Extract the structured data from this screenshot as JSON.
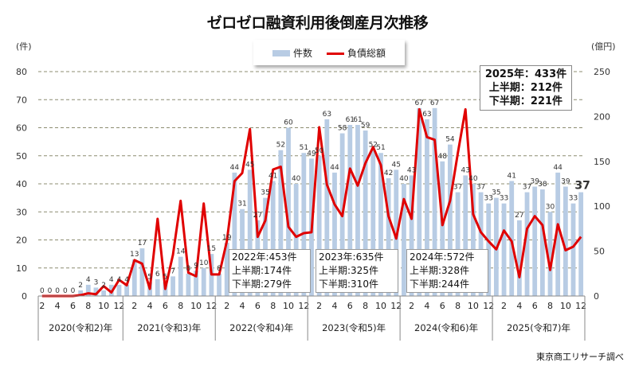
{
  "chart_data": {
    "type": "bar+line",
    "title": "ゼロゼロ融資利用後倒産月次推移",
    "left_axis_unit": "(件)",
    "right_axis_unit": "(億円)",
    "left_ylim": [
      0,
      80
    ],
    "left_ticks": [
      "0",
      "10",
      "20",
      "30",
      "40",
      "50",
      "60",
      "70",
      "80"
    ],
    "right_ylim": [
      0,
      250
    ],
    "right_ticks": [
      "0",
      "50",
      "100",
      "150",
      "200",
      "250"
    ],
    "grid": true,
    "legend_position": "top-center",
    "legend": {
      "bar": "件数",
      "line": "負債総額"
    },
    "colors": {
      "bar": "#b8cce4",
      "line": "#e00000",
      "grid": "#8c8c70"
    },
    "years": [
      {
        "label": "2020(令和2)年",
        "months": [
          2,
          3,
          4,
          5,
          6,
          7,
          8,
          9,
          10,
          11,
          12
        ]
      },
      {
        "label": "2021(令和3)年",
        "months": [
          1,
          2,
          3,
          4,
          5,
          6,
          7,
          8,
          9,
          10,
          11,
          12
        ]
      },
      {
        "label": "2022(令和4)年",
        "months": [
          1,
          2,
          3,
          4,
          5,
          6,
          7,
          8,
          9,
          10,
          11,
          12
        ]
      },
      {
        "label": "2023(令和5)年",
        "months": [
          1,
          2,
          3,
          4,
          5,
          6,
          7,
          8,
          9,
          10,
          11,
          12
        ]
      },
      {
        "label": "2024(令和6)年",
        "months": [
          1,
          2,
          3,
          4,
          5,
          6,
          7,
          8,
          9,
          10,
          11,
          12
        ]
      },
      {
        "label": "2025(令和7)年",
        "months": [
          1,
          2,
          3,
          4,
          5,
          6,
          7,
          8,
          9,
          10,
          11,
          12
        ]
      }
    ],
    "month_tick_labels": [
      "2",
      "4",
      "6",
      "8",
      "10",
      "12"
    ],
    "series": [
      {
        "name": "件数",
        "axis": "left",
        "type": "bar",
        "values": [
          0,
          0,
          0,
          0,
          0,
          2,
          4,
          3,
          2,
          4,
          4,
          4,
          13,
          17,
          5,
          6,
          5,
          7,
          14,
          8,
          9,
          10,
          15,
          8,
          19,
          44,
          31,
          45,
          27,
          35,
          41,
          52,
          60,
          40,
          51,
          49,
          50,
          63,
          44,
          58,
          61,
          61,
          59,
          52,
          51,
          42,
          45,
          40,
          43,
          67,
          63,
          67,
          48,
          54,
          37,
          43,
          40,
          37,
          33,
          35,
          33,
          41,
          27,
          37,
          39,
          38,
          30,
          44,
          39,
          33,
          37
        ]
      },
      {
        "name": "負債総額",
        "axis": "right",
        "type": "line",
        "values": [
          0,
          0,
          0,
          0,
          0,
          1,
          3,
          2,
          11,
          4,
          18,
          12,
          40,
          36,
          8,
          86,
          8,
          46,
          106,
          26,
          22,
          103,
          24,
          24,
          61,
          128,
          137,
          186,
          66,
          84,
          141,
          144,
          77,
          66,
          70,
          71,
          188,
          124,
          102,
          89,
          142,
          123,
          148,
          166,
          146,
          89,
          64,
          108,
          86,
          208,
          177,
          174,
          79,
          106,
          159,
          208,
          91,
          71,
          61,
          52,
          73,
          61,
          21,
          75,
          89,
          79,
          29,
          80,
          51,
          55,
          66
        ]
      }
    ],
    "annotations": [
      {
        "line1": "2022年:453件",
        "line2": "上半期:174件",
        "line3": "下半期:279件"
      },
      {
        "line1": "2023年:635件",
        "line2": "上半期:325件",
        "line3": "下半期:310件"
      },
      {
        "line1": "2024年:572件",
        "line2": "上半期:328件",
        "line3": "下半期:244件"
      },
      {
        "line1": "2025年：433件",
        "line2": "上半期：212件",
        "line3": "下半期：221件"
      }
    ],
    "source": "東京商工リサーチ調べ"
  }
}
